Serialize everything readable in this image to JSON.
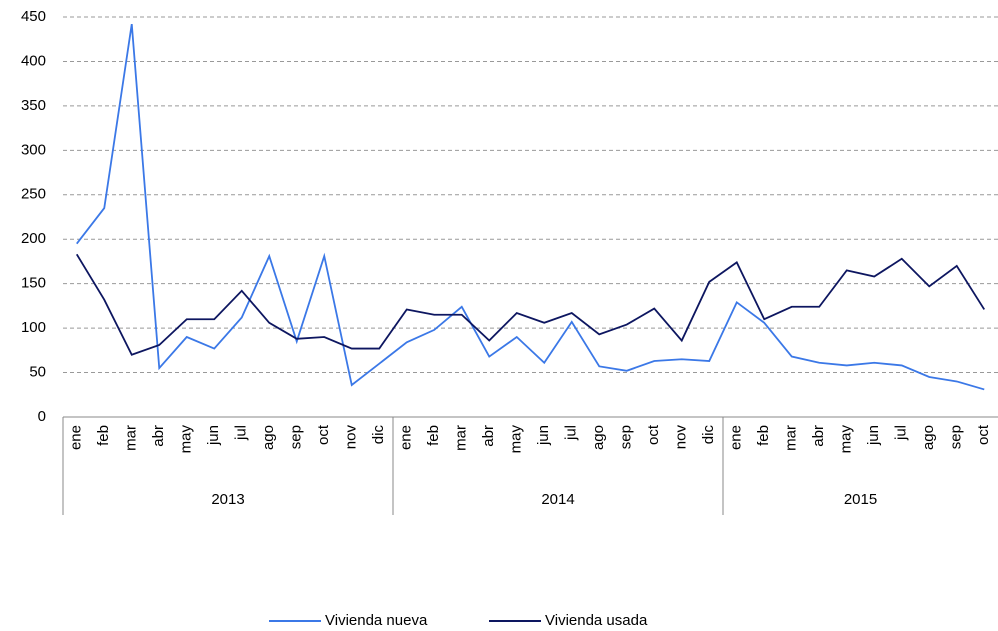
{
  "chart_data": {
    "type": "line",
    "category_groups": [
      {
        "label": "2013",
        "categories": [
          "ene",
          "feb",
          "mar",
          "abr",
          "may",
          "jun",
          "jul",
          "ago",
          "sep",
          "oct",
          "nov",
          "dic"
        ]
      },
      {
        "label": "2014",
        "categories": [
          "ene",
          "feb",
          "mar",
          "abr",
          "may",
          "jun",
          "jul",
          "ago",
          "sep",
          "oct",
          "nov",
          "dic"
        ]
      },
      {
        "label": "2015",
        "categories": [
          "ene",
          "feb",
          "mar",
          "abr",
          "may",
          "jun",
          "jul",
          "ago",
          "sep",
          "oct"
        ]
      }
    ],
    "series": [
      {
        "name": "Vivienda nueva",
        "color": "#3b78e7",
        "values": [
          195,
          235,
          442,
          55,
          90,
          77,
          112,
          181,
          85,
          181,
          36,
          60,
          84,
          98,
          124,
          68,
          90,
          61,
          107,
          57,
          52,
          63,
          65,
          63,
          129,
          106,
          68,
          61,
          58,
          61,
          58,
          45,
          40,
          31
        ]
      },
      {
        "name": "Vivienda usada",
        "color": "#0d1660",
        "values": [
          183,
          132,
          70,
          81,
          110,
          110,
          142,
          106,
          88,
          90,
          77,
          77,
          121,
          115,
          115,
          86,
          117,
          106,
          117,
          93,
          104,
          122,
          86,
          152,
          174,
          110,
          124,
          124,
          165,
          158,
          178,
          147,
          170,
          121
        ]
      }
    ],
    "ylim": [
      0,
      450
    ],
    "yticks": [
      0,
      50,
      100,
      150,
      200,
      250,
      300,
      350,
      400,
      450
    ],
    "grid": true,
    "legend": "bottom"
  }
}
